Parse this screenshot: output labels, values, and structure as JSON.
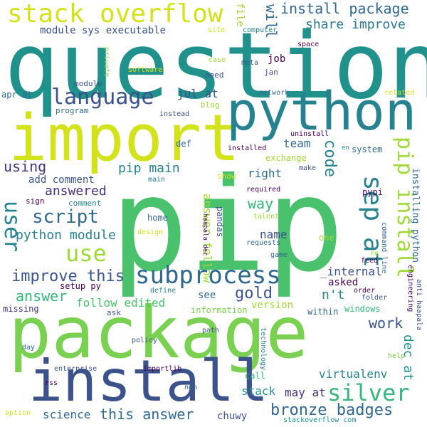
{
  "palette": {
    "purple": "#440154",
    "indigo": "#3b528b",
    "blue": "#31688e",
    "teal": "#26828e",
    "teal2": "#21918c",
    "green": "#35b779",
    "green2": "#4ac16d",
    "lime": "#7ad151",
    "yellowgreen": "#a0da39",
    "yellow": "#d2e21b",
    "yellow2": "#fde725"
  },
  "words": [
    {
      "text": "pip",
      "color": "#4ac16d"
    },
    {
      "text": "question",
      "color": "#21918c"
    },
    {
      "text": "package",
      "color": "#7ad151"
    },
    {
      "text": "install",
      "color": "#3b528b"
    },
    {
      "text": "import",
      "color": "#d2e21b"
    },
    {
      "text": "python",
      "color": "#26828e"
    },
    {
      "text": "stack overflow",
      "color": "#d2e21b"
    },
    {
      "text": "pip install",
      "color": "#a0da39"
    },
    {
      "text": "subprocess",
      "color": "#31688e"
    },
    {
      "text": "sep at",
      "color": "#26828e"
    },
    {
      "text": "language",
      "color": "#3b528b"
    },
    {
      "text": "use",
      "color": "#a0da39"
    },
    {
      "text": "silver",
      "color": "#35b779"
    },
    {
      "text": "bronze badges",
      "color": "#31688e"
    },
    {
      "text": "user",
      "color": "#26828e"
    },
    {
      "text": "install package",
      "color": "#31688e"
    },
    {
      "text": "share improve",
      "color": "#2a788e"
    },
    {
      "text": "script",
      "color": "#31688e"
    },
    {
      "text": "python module",
      "color": "#26828e"
    },
    {
      "text": "improve this",
      "color": "#3b528b"
    },
    {
      "text": "answer",
      "color": "#35b779"
    },
    {
      "text": "gold",
      "color": "#3b528b"
    },
    {
      "text": "work",
      "color": "#3b528b"
    },
    {
      "text": "this answer",
      "color": "#31688e"
    },
    {
      "text": "answered",
      "color": "#46327e"
    },
    {
      "text": "pip main",
      "color": "#26828e"
    },
    {
      "text": "using",
      "color": "#46327e"
    },
    {
      "text": "code",
      "color": "#26828e"
    },
    {
      "text": "team",
      "color": "#31688e"
    },
    {
      "text": "way",
      "color": "#35b779"
    },
    {
      "text": "will",
      "color": "#31688e"
    },
    {
      "text": "module sys executable",
      "color": "#3b528b"
    },
    {
      "text": "answer follow",
      "color": "#a0da39"
    },
    {
      "text": "virtualenv",
      "color": "#26828e"
    },
    {
      "text": "dec at",
      "color": "#21918c"
    },
    {
      "text": "follow edited",
      "color": "#4ac16d"
    },
    {
      "text": "jul at",
      "color": "#3b528b"
    },
    {
      "text": "may at",
      "color": "#46327e"
    },
    {
      "text": "stack",
      "color": "#21918c"
    },
    {
      "text": "n't",
      "color": "#26828e"
    },
    {
      "text": "science",
      "color": "#31688e"
    },
    {
      "text": "add comment",
      "color": "#3b528b"
    },
    {
      "text": "right",
      "color": "#31688e"
    },
    {
      "text": "name",
      "color": "#3b528b"
    },
    {
      "text": "job",
      "color": "#440154"
    },
    {
      "text": "_internal",
      "color": "#3b528b"
    },
    {
      "text": "asked",
      "color": "#440154"
    },
    {
      "text": "see",
      "color": "#31688e"
    },
    {
      "text": "version",
      "color": "#a0da39"
    },
    {
      "text": "chuwy",
      "color": "#3b528b"
    },
    {
      "text": "pypi",
      "color": "#440154"
    },
    {
      "text": "installing python",
      "color": "#31688e"
    },
    {
      "text": "exchange",
      "color": "#a0da39"
    },
    {
      "text": "file",
      "color": "#a0da39"
    },
    {
      "text": "missing",
      "color": "#46327e"
    },
    {
      "text": "information",
      "color": "#7ad151"
    },
    {
      "text": "within",
      "color": "#31688e"
    },
    {
      "text": "windows",
      "color": "#35b779"
    },
    {
      "text": "setup py",
      "color": "#440154"
    },
    {
      "text": "call",
      "color": "#35b779"
    },
    {
      "text": "one",
      "color": "#a0da39"
    },
    {
      "text": "pandas",
      "color": "#3b528b"
    },
    {
      "text": "home",
      "color": "#31688e"
    },
    {
      "text": "def",
      "color": "#31688e"
    },
    {
      "text": "blog",
      "color": "#a0da39"
    },
    {
      "text": "program",
      "color": "#31688e"
    },
    {
      "text": "apr at",
      "color": "#31688e"
    },
    {
      "text": "comment",
      "color": "#26828e"
    },
    {
      "text": "sign",
      "color": "#440154"
    },
    {
      "text": "need",
      "color": "#3b528b"
    },
    {
      "text": "ask",
      "color": "#3b528b"
    },
    {
      "text": "system",
      "color": "#31688e"
    },
    {
      "text": "make",
      "color": "#3b528b"
    },
    {
      "text": "software",
      "color": "#d2e21b"
    },
    {
      "text": "private",
      "color": "#7ad151"
    },
    {
      "text": "module",
      "color": "#3b528b"
    },
    {
      "text": "instead",
      "color": "#3b528b"
    },
    {
      "text": "installed",
      "color": "#440154"
    },
    {
      "text": "uninstall",
      "color": "#440154"
    },
    {
      "text": "show",
      "color": "#d2e21b"
    },
    {
      "text": "required",
      "color": "#440154"
    },
    {
      "text": "talent",
      "color": "#a0da39"
    },
    {
      "text": "requests",
      "color": "#31688e"
    },
    {
      "text": "game",
      "color": "#31688e"
    },
    {
      "text": "feed",
      "color": "#440154"
    },
    {
      "text": "order",
      "color": "#440154"
    },
    {
      "text": "folder",
      "color": "#3b528b"
    },
    {
      "text": "command line",
      "color": "#31688e"
    },
    {
      "text": "engineering",
      "color": "#440154"
    },
    {
      "text": "anti haapala",
      "color": "#3b528b"
    },
    {
      "text": "help",
      "color": "#7ad151"
    },
    {
      "text": "re",
      "color": "#a0da39"
    },
    {
      "text": "en",
      "color": "#21918c"
    },
    {
      "text": "related",
      "color": "#d2e21b"
    },
    {
      "text": "network",
      "color": "#31688e"
    },
    {
      "text": "jan",
      "color": "#3b528b"
    },
    {
      "text": "meta",
      "color": "#3b528b"
    },
    {
      "text": "case",
      "color": "#a0da39"
    },
    {
      "text": "space",
      "color": "#440154"
    },
    {
      "text": "computer",
      "color": "#26828e"
    },
    {
      "text": "site",
      "color": "#d2e21b"
    },
    {
      "text": "haapala dec",
      "color": "#440154"
    },
    {
      "text": "main",
      "color": "#26828e"
    },
    {
      "text": "design",
      "color": "#d2e21b"
    },
    {
      "text": "define",
      "color": "#26828e"
    },
    {
      "text": "day",
      "color": "#31688e"
    },
    {
      "text": "policy",
      "color": "#3b528b"
    },
    {
      "text": "path",
      "color": "#3b528b"
    },
    {
      "text": "technology",
      "color": "#26828e"
    },
    {
      "text": "enterprise",
      "color": "#3b528b"
    },
    {
      "text": "importlib",
      "color": "#440154"
    },
    {
      "text": "rss",
      "color": "#440154"
    },
    {
      "text": "non",
      "color": "#31688e"
    },
    {
      "text": "option",
      "color": "#d2e21b"
    },
    {
      "text": "stackoverflow com",
      "color": "#21918c"
    }
  ]
}
